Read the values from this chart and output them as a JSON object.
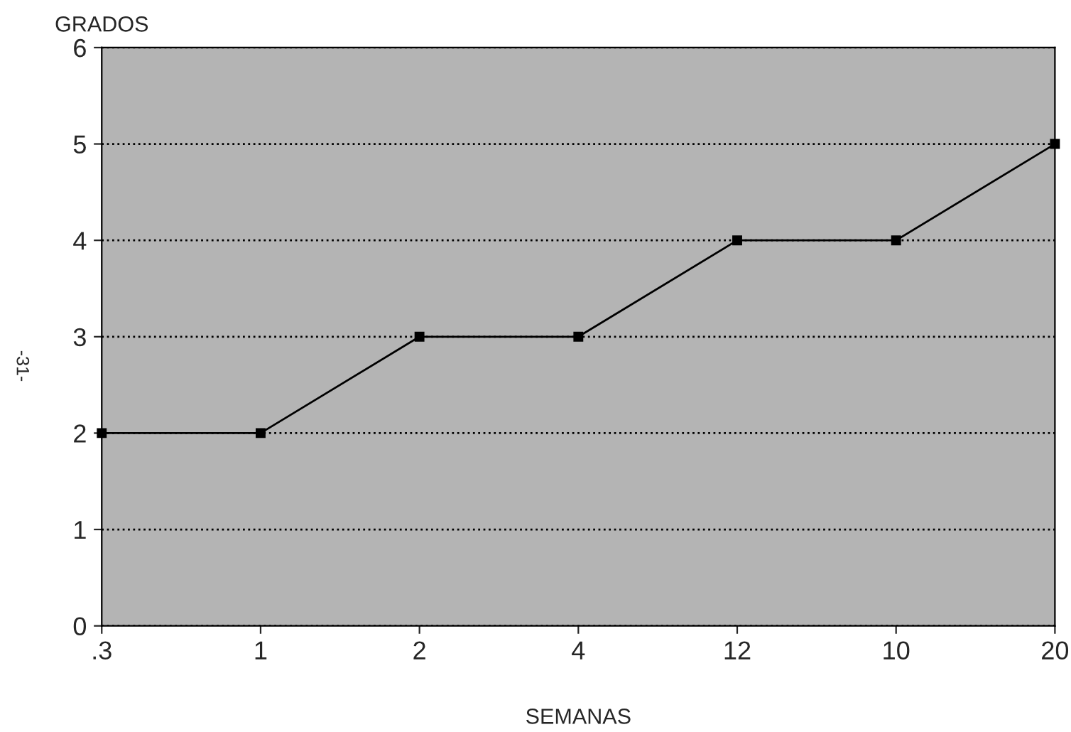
{
  "chart_data": {
    "type": "line",
    "xlabel": "SEMANAS",
    "ylabel": "GRADOS",
    "categories": [
      ".3",
      "1",
      "2",
      "4",
      "12",
      "10",
      "20"
    ],
    "series": [
      {
        "color": "#000000",
        "values": [
          2,
          2,
          3,
          3,
          4,
          4,
          5
        ]
      }
    ],
    "ylim": [
      0,
      6
    ],
    "yticks": [
      0,
      1,
      2,
      3,
      4,
      5,
      6
    ],
    "grid": "y",
    "marker": "square",
    "line_style": "solid",
    "annotations": [
      "-31-"
    ]
  }
}
